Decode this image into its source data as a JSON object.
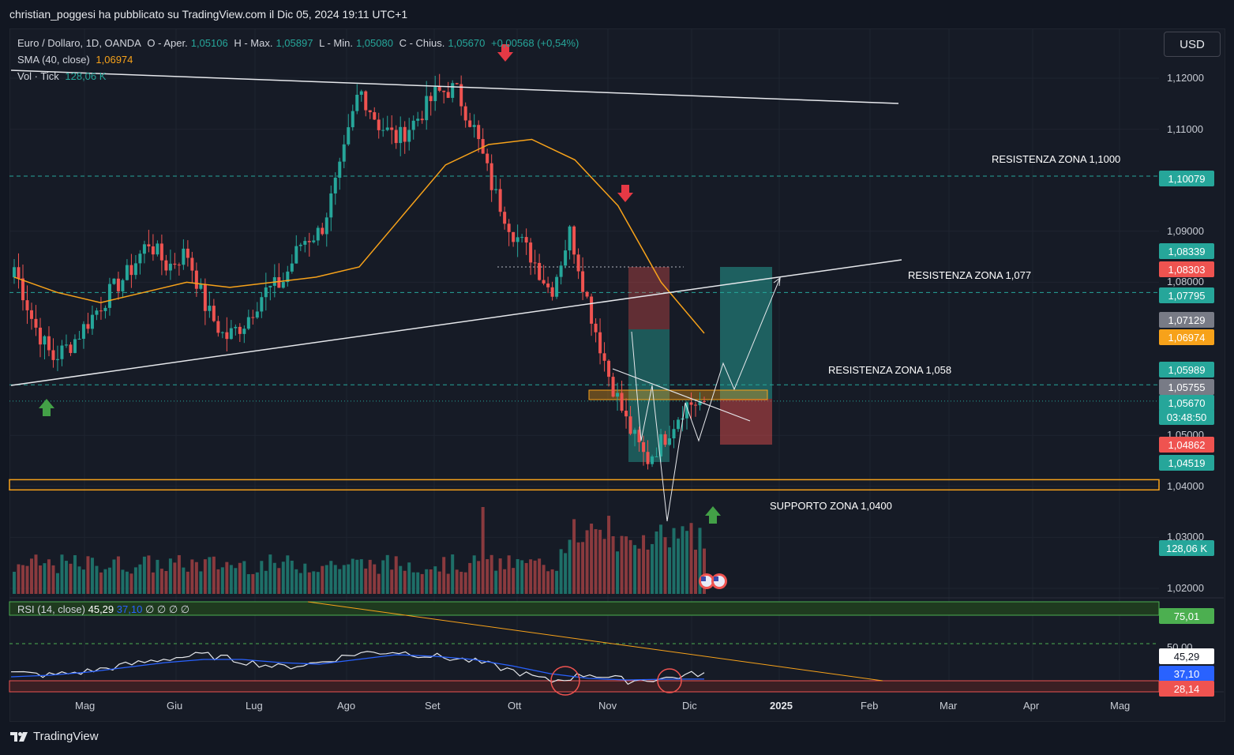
{
  "header": {
    "publisher_line": "christian_poggesi ha pubblicato su TradingView.com il Dic 05, 2024 19:11 UTC+1"
  },
  "legend": {
    "symbol": "Euro / Dollaro, 1D, OANDA",
    "open_label": "O - Aper.",
    "open": "1,05106",
    "high_label": "H - Max.",
    "high": "1,05897",
    "low_label": "L - Min.",
    "low": "1,05080",
    "close_label": "C - Chius.",
    "close": "1,05670",
    "change": "+0,00568 (+0,54%)",
    "sma_label": "SMA (40, close)",
    "sma_value": "1,06974",
    "vol_label": "Vol · Tick",
    "vol_value": "128,06 K"
  },
  "rsi_legend": {
    "label": "RSI (14, close)",
    "rsi": "45,29",
    "ma": "37,10",
    "extras": "∅ ∅ ∅ ∅"
  },
  "toolbar": {
    "currency": "USD"
  },
  "price_axis": {
    "ticks": [
      "1,12000",
      "1,11000",
      "1,09000",
      "1,08000",
      "1,05000",
      "1,04000",
      "1,03000",
      "1,02000"
    ],
    "rsi_ticks": [
      "50,00"
    ]
  },
  "price_tags": [
    {
      "text": "1,10079",
      "color": "#26a69a"
    },
    {
      "text": "1,08339",
      "color": "#26a69a"
    },
    {
      "text": "1,08303",
      "color": "#ef5350"
    },
    {
      "text": "1,07795",
      "color": "#26a69a"
    },
    {
      "text": "1,07129",
      "color": "#787b86"
    },
    {
      "text": "1,06974",
      "color": "#f7a21a"
    },
    {
      "text": "1,05989",
      "color": "#26a69a"
    },
    {
      "text": "1,05755",
      "color": "#787b86"
    },
    {
      "text": "1,05670",
      "color": "#26a69a"
    },
    {
      "text": "03:48:50",
      "color": "#26a69a"
    },
    {
      "text": "1,04862",
      "color": "#ef5350"
    },
    {
      "text": "1,04519",
      "color": "#26a69a"
    },
    {
      "text": "128,06 K",
      "color": "#26a69a"
    },
    {
      "text": "75,01",
      "color": "#4caf50"
    },
    {
      "text": "45,29",
      "color": "#ffffff"
    },
    {
      "text": "37,10",
      "color": "#2962ff"
    },
    {
      "text": "28,14",
      "color": "#ef5350"
    }
  ],
  "time_axis": [
    "Mag",
    "Giu",
    "Lug",
    "Ago",
    "Set",
    "Ott",
    "Nov",
    "Dic",
    "2025",
    "Feb",
    "Mar",
    "Apr",
    "Mag"
  ],
  "annotations": {
    "res_1100": "RESISTENZA ZONA 1,1000",
    "res_1077": "RESISTENZA ZONA 1,077",
    "res_1058": "RESISTENZA ZONA 1,058",
    "sup_1040": "SUPPORTO ZONA 1,0400"
  },
  "brand": {
    "name": "TradingView"
  },
  "chart_data": {
    "type": "candlestick",
    "symbol": "EURUSD",
    "timeframe": "1D",
    "ylim": [
      1.015,
      1.125
    ],
    "x_labels": [
      "Mag",
      "Giu",
      "Lug",
      "Ago",
      "Set",
      "Ott",
      "Nov",
      "Dic",
      "2025",
      "Feb",
      "Mar",
      "Apr",
      "Mag"
    ],
    "close_path": [
      1.083,
      1.072,
      1.065,
      1.068,
      1.073,
      1.078,
      1.082,
      1.088,
      1.083,
      1.086,
      1.075,
      1.069,
      1.072,
      1.078,
      1.08,
      1.088,
      1.09,
      1.102,
      1.118,
      1.111,
      1.108,
      1.112,
      1.117,
      1.118,
      1.11,
      1.098,
      1.09,
      1.085,
      1.078,
      1.09,
      1.075,
      1.062,
      1.052,
      1.045,
      1.05,
      1.056,
      1.0567
    ],
    "sma": [
      1.081,
      1.078,
      1.076,
      1.078,
      1.08,
      1.079,
      1.08,
      1.081,
      1.083,
      1.093,
      1.103,
      1.107,
      1.108,
      1.104,
      1.095,
      1.08,
      1.07
    ],
    "volume_last": 128060,
    "rsi": [
      45,
      42,
      47,
      55,
      63,
      68,
      60,
      52,
      58,
      70,
      72,
      66,
      60,
      48,
      34,
      44,
      35,
      38,
      45.29
    ],
    "rsi_ma": 37.1,
    "levels": [
      1.1,
      1.0779,
      1.058,
      1.04
    ],
    "rsi_levels": [
      75.01,
      28.14
    ]
  }
}
